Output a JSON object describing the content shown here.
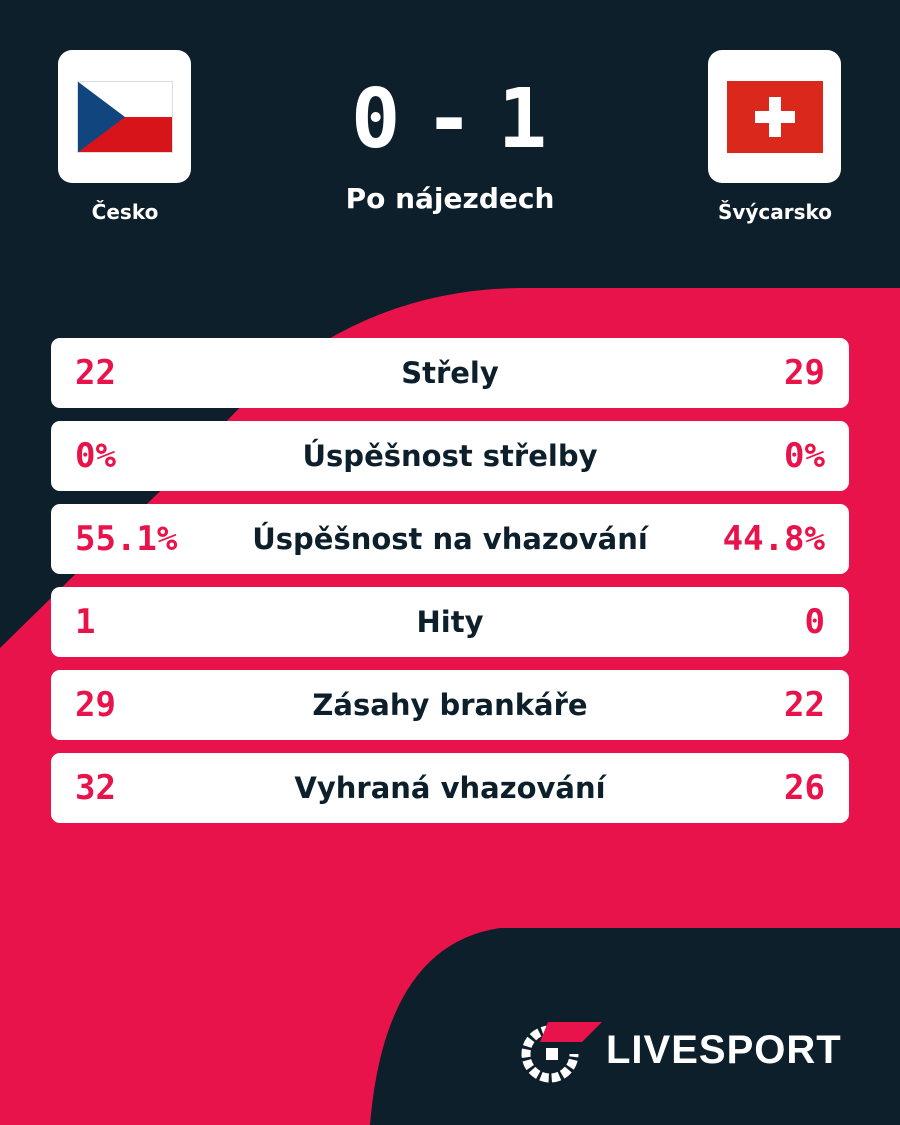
{
  "match": {
    "home": {
      "name": "Česko",
      "flag_icon": "czech-flag-icon",
      "score": "0"
    },
    "away": {
      "name": "Švýcarsko",
      "flag_icon": "swiss-flag-icon",
      "score": "1"
    },
    "separator": "-",
    "note": "Po nájezdech"
  },
  "stats": [
    {
      "label": "Střely",
      "home": "22",
      "away": "29"
    },
    {
      "label": "Úspěšnost střelby",
      "home": "0%",
      "away": "0%"
    },
    {
      "label": "Úspěšnost na vhazování",
      "home": "55.1%",
      "away": "44.8%"
    },
    {
      "label": "Hity",
      "home": "1",
      "away": "0"
    },
    {
      "label": "Zásahy brankáře",
      "home": "29",
      "away": "22"
    },
    {
      "label": "Vyhraná vhazování",
      "home": "32",
      "away": "26"
    }
  ],
  "brand": {
    "name": "LIVESPORT",
    "icon": "livesport-logo-icon"
  },
  "colors": {
    "background": "#0d1f2a",
    "accent": "#e8134a",
    "card": "#ffffff"
  }
}
